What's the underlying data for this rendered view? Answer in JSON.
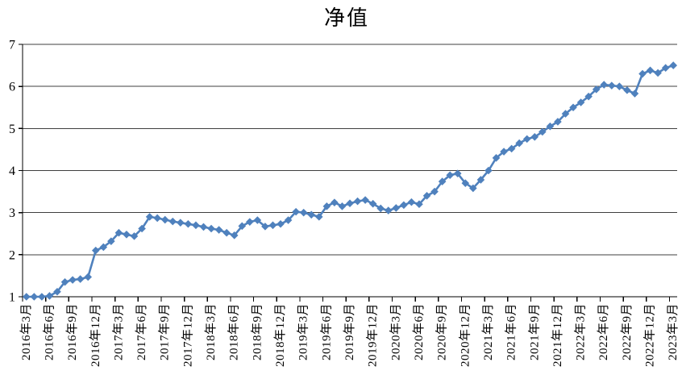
{
  "colors": {
    "series": "#4F81BD",
    "grid": "#3f3f3f",
    "axis": "#000000",
    "text": "#000000",
    "background": "#ffffff"
  },
  "chart_data": {
    "type": "line",
    "title": "净值",
    "xlabel": "",
    "ylabel": "",
    "ylim": [
      1,
      7
    ],
    "yticks": [
      1,
      2,
      3,
      4,
      5,
      6,
      7
    ],
    "grid": true,
    "legend": "none",
    "marker": "diamond",
    "x_tick_labels": [
      "2016年3月",
      "2016年6月",
      "2016年9月",
      "2016年12月",
      "2017年3月",
      "2017年6月",
      "2017年9月",
      "2017年12月",
      "2018年3月",
      "2018年6月",
      "2018年9月",
      "2018年12月",
      "2019年3月",
      "2019年6月",
      "2019年9月",
      "2019年12月",
      "2020年3月",
      "2020年6月",
      "2020年9月",
      "2020年12月",
      "2021年3月",
      "2021年6月",
      "2021年9月",
      "2021年12月",
      "2022年3月",
      "2022年6月",
      "2022年9月",
      "2022年12月",
      "2023年3月"
    ],
    "x_monthly": [
      "2016-03",
      "2016-04",
      "2016-05",
      "2016-06",
      "2016-07",
      "2016-08",
      "2016-09",
      "2016-10",
      "2016-11",
      "2016-12",
      "2017-01",
      "2017-02",
      "2017-03",
      "2017-04",
      "2017-05",
      "2017-06",
      "2017-07",
      "2017-08",
      "2017-09",
      "2017-10",
      "2017-11",
      "2017-12",
      "2018-01",
      "2018-02",
      "2018-03",
      "2018-04",
      "2018-05",
      "2018-06",
      "2018-07",
      "2018-08",
      "2018-09",
      "2018-10",
      "2018-11",
      "2018-12",
      "2019-01",
      "2019-02",
      "2019-03",
      "2019-04",
      "2019-05",
      "2019-06",
      "2019-07",
      "2019-08",
      "2019-09",
      "2019-10",
      "2019-11",
      "2019-12",
      "2020-01",
      "2020-02",
      "2020-03",
      "2020-04",
      "2020-05",
      "2020-06",
      "2020-07",
      "2020-08",
      "2020-09",
      "2020-10",
      "2020-11",
      "2020-12",
      "2021-01",
      "2021-02",
      "2021-03",
      "2021-04",
      "2021-05",
      "2021-06",
      "2021-07",
      "2021-08",
      "2021-09",
      "2021-10",
      "2021-11",
      "2021-12",
      "2022-01",
      "2022-02",
      "2022-03",
      "2022-04",
      "2022-05",
      "2022-06",
      "2022-07",
      "2022-08",
      "2022-09",
      "2022-10",
      "2022-11",
      "2022-12",
      "2023-01",
      "2023-02",
      "2023-03"
    ],
    "series": [
      {
        "name": "净值",
        "values": [
          1.0,
          1.0,
          1.0,
          1.02,
          1.12,
          1.35,
          1.4,
          1.42,
          1.47,
          2.1,
          2.18,
          2.32,
          2.52,
          2.48,
          2.44,
          2.62,
          2.9,
          2.87,
          2.83,
          2.79,
          2.76,
          2.73,
          2.7,
          2.66,
          2.62,
          2.59,
          2.52,
          2.46,
          2.68,
          2.78,
          2.82,
          2.67,
          2.7,
          2.73,
          2.82,
          3.02,
          3.0,
          2.95,
          2.9,
          3.15,
          3.24,
          3.15,
          3.22,
          3.27,
          3.3,
          3.21,
          3.1,
          3.05,
          3.11,
          3.18,
          3.25,
          3.2,
          3.4,
          3.5,
          3.74,
          3.89,
          3.93,
          3.7,
          3.58,
          3.78,
          4.0,
          4.3,
          4.45,
          4.52,
          4.65,
          4.75,
          4.8,
          4.92,
          5.05,
          5.16,
          5.35,
          5.5,
          5.62,
          5.76,
          5.93,
          6.04,
          6.02,
          6.0,
          5.91,
          5.83,
          6.3,
          6.38,
          6.32,
          6.44,
          6.5
        ]
      }
    ]
  }
}
